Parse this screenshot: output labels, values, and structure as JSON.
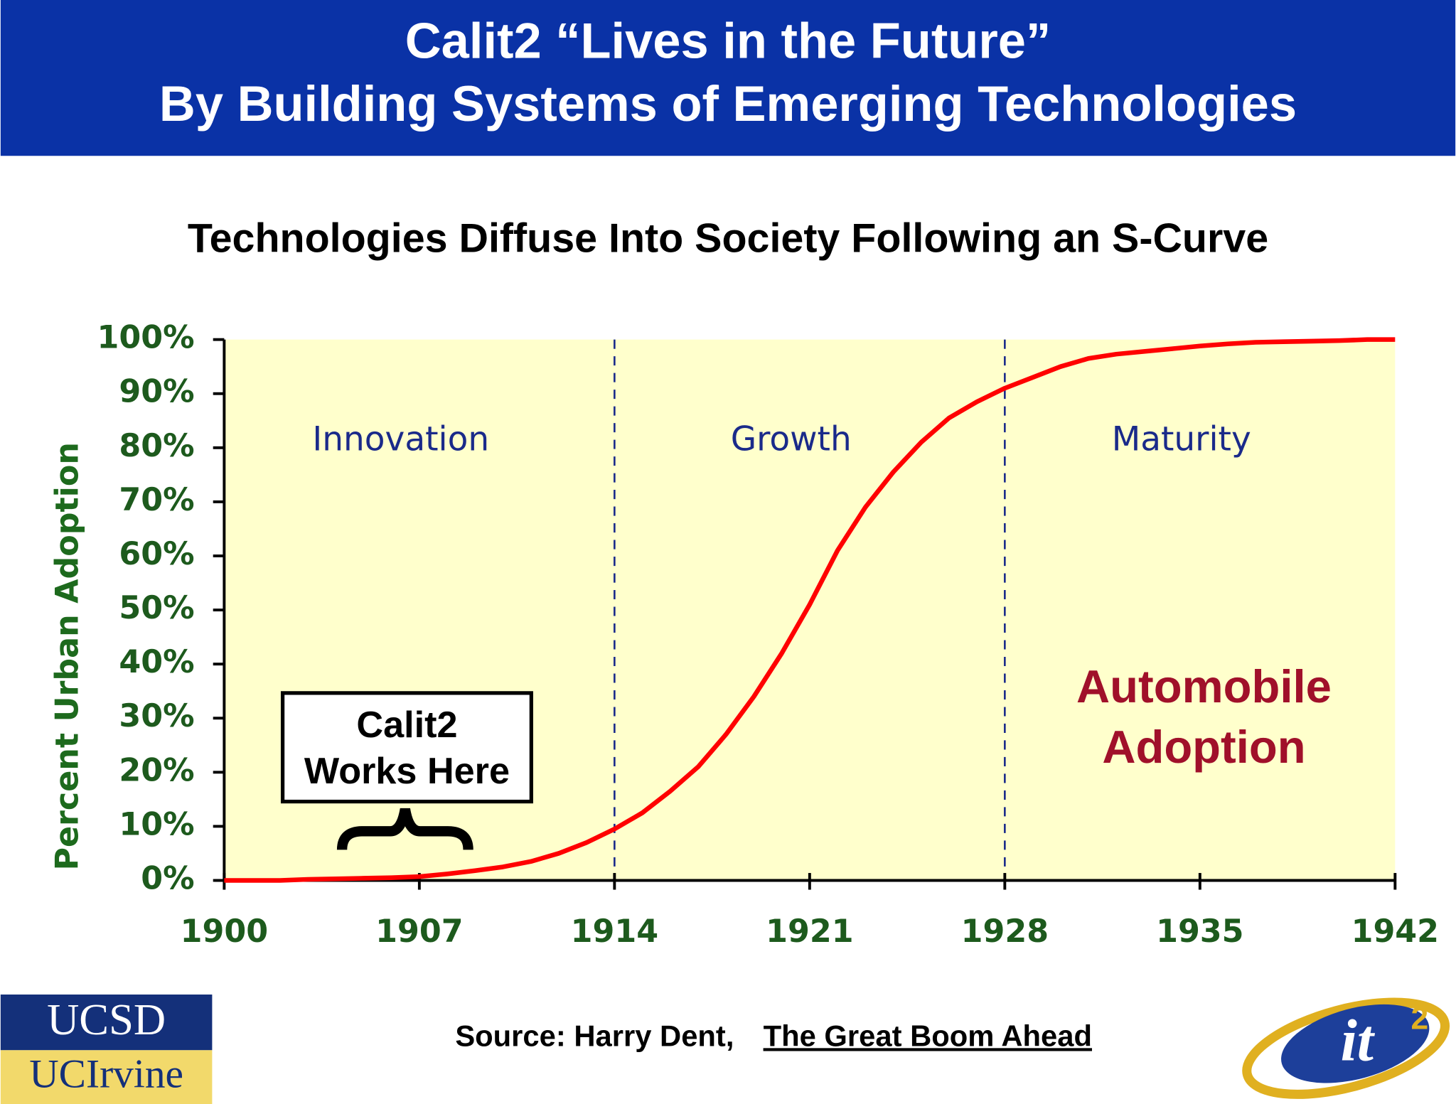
{
  "slide": {
    "title_lines": [
      "Calit2 “Lives in the Future”",
      "By Building Systems of Emerging Technologies"
    ],
    "source": {
      "prefix": "Source: Harry Dent, ",
      "book": "The Great Boom Ahead"
    },
    "logos": {
      "ucsd": "UCSD",
      "uci": "UCIrvine",
      "it2_main": "it",
      "it2_sup": "2"
    }
  },
  "chart_data": {
    "type": "line",
    "title": "Technologies Diffuse Into Society Following an S-Curve",
    "y_label": "Percent Urban Adoption",
    "phase_labels": [
      "Innovation",
      "Growth",
      "Maturity"
    ],
    "phase_boundaries": [
      1914,
      1928
    ],
    "series_label": [
      "Automobile",
      "Adoption"
    ],
    "callout": [
      "Calit2",
      "Works Here"
    ],
    "x": [
      1900,
      1901,
      1902,
      1903,
      1904,
      1905,
      1906,
      1907,
      1908,
      1909,
      1910,
      1911,
      1912,
      1913,
      1914,
      1915,
      1916,
      1917,
      1918,
      1919,
      1920,
      1921,
      1922,
      1923,
      1924,
      1925,
      1926,
      1927,
      1928,
      1929,
      1930,
      1931,
      1932,
      1933,
      1934,
      1935,
      1936,
      1937,
      1938,
      1939,
      1940,
      1941,
      1942
    ],
    "series": [
      {
        "name": "Automobile Adoption",
        "color": "#ff0000",
        "values": [
          0,
          0,
          0,
          0.2,
          0.3,
          0.4,
          0.5,
          0.7,
          1.2,
          1.8,
          2.5,
          3.5,
          5,
          7,
          9.5,
          12.5,
          16.5,
          21,
          27,
          34,
          42,
          51,
          61,
          69,
          75.5,
          81,
          85.5,
          88.5,
          91,
          93,
          95,
          96.5,
          97.3,
          97.8,
          98.3,
          98.8,
          99.2,
          99.5,
          99.6,
          99.7,
          99.8,
          100,
          100
        ]
      }
    ],
    "xlim": [
      1900,
      1942
    ],
    "xticks": [
      1900,
      1907,
      1914,
      1921,
      1928,
      1935,
      1942
    ],
    "ylim": [
      0,
      100
    ],
    "yticks": [
      {
        "value": 0,
        "label": "0%"
      },
      {
        "value": 10,
        "label": "10%"
      },
      {
        "value": 20,
        "label": "20%"
      },
      {
        "value": 30,
        "label": "30%"
      },
      {
        "value": 40,
        "label": "40%"
      },
      {
        "value": 50,
        "label": "50%"
      },
      {
        "value": 60,
        "label": "60%"
      },
      {
        "value": 70,
        "label": "70%"
      },
      {
        "value": 80,
        "label": "80%"
      },
      {
        "value": 90,
        "label": "90%"
      },
      {
        "value": 100,
        "label": "100%"
      }
    ],
    "background": "#ffffcc"
  }
}
